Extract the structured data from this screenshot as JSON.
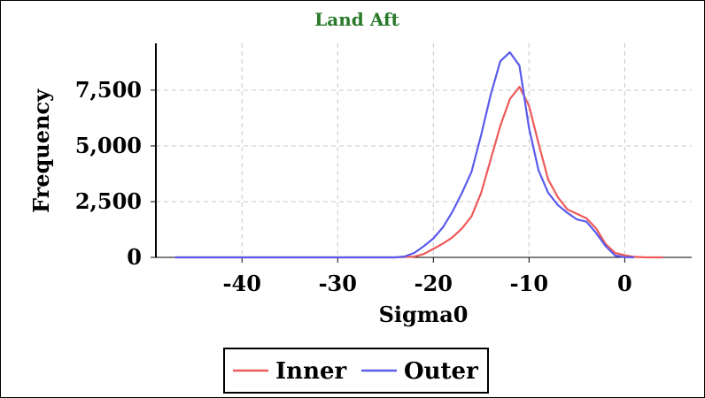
{
  "chart_data": {
    "type": "line",
    "title": "Land Aft",
    "xlabel": "Sigma0",
    "ylabel": "Frequency",
    "xlim": [
      -49,
      7
    ],
    "ylim": [
      0,
      9600
    ],
    "x_ticks": [
      -40,
      -30,
      -20,
      -10,
      0
    ],
    "x_tick_labels": [
      "-40",
      "-30",
      "-20",
      "-10",
      "0"
    ],
    "y_ticks": [
      0,
      2500,
      5000,
      7500
    ],
    "y_tick_labels": [
      "0",
      "2,500",
      "5,000",
      "7,500"
    ],
    "grid": true,
    "legend": "bottom-center",
    "series": [
      {
        "name": "Inner",
        "color": "#ee5a5a",
        "points": [
          [
            -47,
            0
          ],
          [
            -30,
            0
          ],
          [
            -24,
            0
          ],
          [
            -22,
            30
          ],
          [
            -21,
            150
          ],
          [
            -20,
            380
          ],
          [
            -19,
            620
          ],
          [
            -18,
            900
          ],
          [
            -17,
            1300
          ],
          [
            -16,
            1850
          ],
          [
            -15,
            2900
          ],
          [
            -14,
            4400
          ],
          [
            -13,
            5900
          ],
          [
            -12,
            7100
          ],
          [
            -11,
            7650
          ],
          [
            -10,
            6800
          ],
          [
            -9,
            5100
          ],
          [
            -8,
            3500
          ],
          [
            -7,
            2700
          ],
          [
            -6,
            2150
          ],
          [
            -5,
            1950
          ],
          [
            -4,
            1750
          ],
          [
            -3,
            1300
          ],
          [
            -2,
            600
          ],
          [
            -1,
            200
          ],
          [
            0,
            90
          ],
          [
            1,
            25
          ],
          [
            2,
            5
          ],
          [
            4,
            0
          ]
        ]
      },
      {
        "name": "Outer",
        "color": "#5a5aee",
        "points": [
          [
            -47,
            0
          ],
          [
            -30,
            0
          ],
          [
            -24,
            0
          ],
          [
            -23,
            40
          ],
          [
            -22,
            200
          ],
          [
            -21,
            500
          ],
          [
            -20,
            850
          ],
          [
            -19,
            1350
          ],
          [
            -18,
            2050
          ],
          [
            -17,
            2900
          ],
          [
            -16,
            3850
          ],
          [
            -15,
            5500
          ],
          [
            -14,
            7300
          ],
          [
            -13,
            8800
          ],
          [
            -12,
            9200
          ],
          [
            -11,
            8600
          ],
          [
            -10,
            5800
          ],
          [
            -9,
            3900
          ],
          [
            -8,
            2900
          ],
          [
            -7,
            2350
          ],
          [
            -6,
            2000
          ],
          [
            -5,
            1700
          ],
          [
            -4,
            1600
          ],
          [
            -3,
            1100
          ],
          [
            -2,
            500
          ],
          [
            -1,
            80
          ],
          [
            0,
            10
          ],
          [
            1,
            0
          ]
        ]
      }
    ]
  }
}
